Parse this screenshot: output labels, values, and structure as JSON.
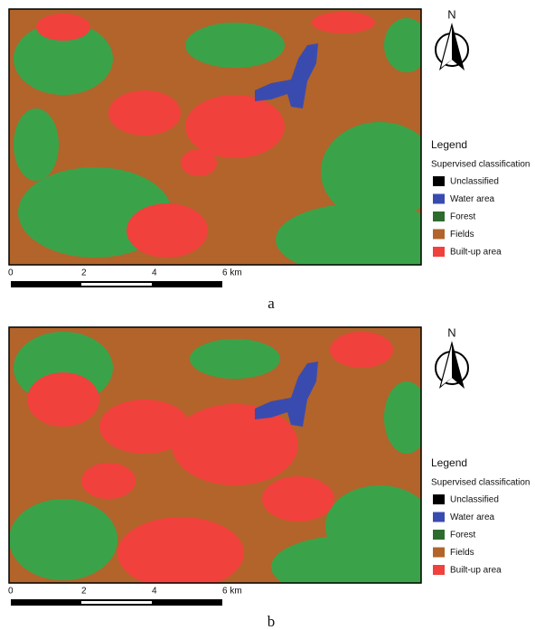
{
  "panels": [
    {
      "north": "N",
      "legend_title": "Legend",
      "legend_subtitle": "Supervised classification",
      "legend_items": [
        {
          "label": "Unclassified",
          "color": "#000000"
        },
        {
          "label": "Water area",
          "color": "#3a4bb0"
        },
        {
          "label": "Forest",
          "color": "#2e6b2e"
        },
        {
          "label": "Fields",
          "color": "#b2642a"
        },
        {
          "label": "Built-up area",
          "color": "#f0413c"
        }
      ],
      "scale_labels": [
        "0",
        "2",
        "4",
        "6 km"
      ],
      "caption": "a"
    },
    {
      "north": "N",
      "legend_title": "Legend",
      "legend_subtitle": "Supervised classification",
      "legend_items": [
        {
          "label": "Unclassified",
          "color": "#000000"
        },
        {
          "label": "Water area",
          "color": "#3a4bb0"
        },
        {
          "label": "Forest",
          "color": "#2e6b2e"
        },
        {
          "label": "Fields",
          "color": "#b2642a"
        },
        {
          "label": "Built-up area",
          "color": "#f0413c"
        }
      ],
      "scale_labels": [
        "0",
        "2",
        "4",
        "6 km"
      ],
      "caption": "b"
    }
  ]
}
